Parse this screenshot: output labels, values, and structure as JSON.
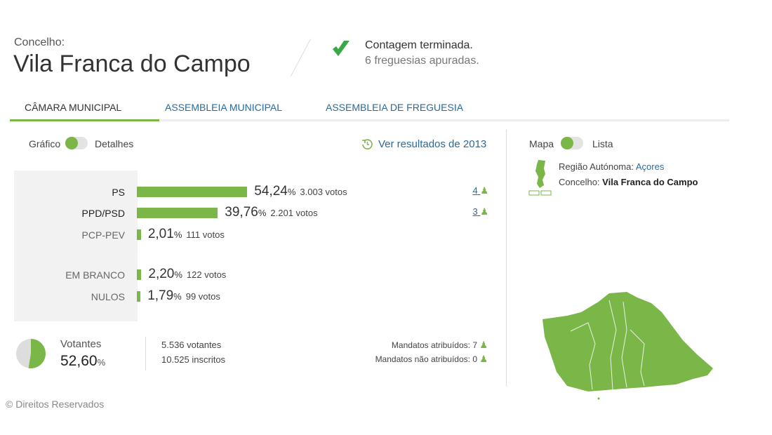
{
  "header": {
    "label": "Concelho:",
    "title": "Vila Franca do Campo",
    "status": "Contagem terminada.",
    "substatus": "6 freguesias apuradas."
  },
  "tabs": [
    {
      "label": "CÂMARA MUNICIPAL",
      "active": true
    },
    {
      "label": "ASSEMBLEIA MUNICIPAL"
    },
    {
      "label": "ASSEMBLEIA DE FREGUESIA"
    }
  ],
  "view_toggle": {
    "left": "Gráfico",
    "right": "Detalhes"
  },
  "history_link": "Ver resultados de 2013",
  "results": [
    {
      "party": "PS",
      "pct": 54.24,
      "pct_label": "54,24",
      "votes": "3.003 votos",
      "seats": "4"
    },
    {
      "party": "PPD/PSD",
      "pct": 39.76,
      "pct_label": "39,76",
      "votes": "2.201 votos",
      "seats": "3"
    },
    {
      "party": "PCP-PEV",
      "pct": 2.01,
      "pct_label": "2,01",
      "votes": "111 votos"
    },
    {
      "party": "EM BRANCO",
      "pct": 2.2,
      "pct_label": "2,20",
      "votes": "122 votos"
    },
    {
      "party": "NULOS",
      "pct": 1.79,
      "pct_label": "1,79",
      "votes": "99 votos"
    }
  ],
  "turnout": {
    "label": "Votantes",
    "pct": 52.6,
    "pct_label": "52,60",
    "voters": "5.536 votantes",
    "registered": "10.525 inscritos",
    "seats_assigned": "Mandatos atribuídos: 7",
    "seats_unassigned": "Mandatos não atribuídos: 0"
  },
  "map_toggle": {
    "left": "Mapa",
    "right": "Lista"
  },
  "location": {
    "region_label": "Região Autónoma:",
    "region": "Açores",
    "council_label": "Concelho:",
    "council": "Vila Franca do Campo"
  },
  "percent_sign": "%",
  "footer": "© Direitos Reservados",
  "colors": {
    "accent": "#7ab648",
    "link": "#2a6a9a"
  }
}
